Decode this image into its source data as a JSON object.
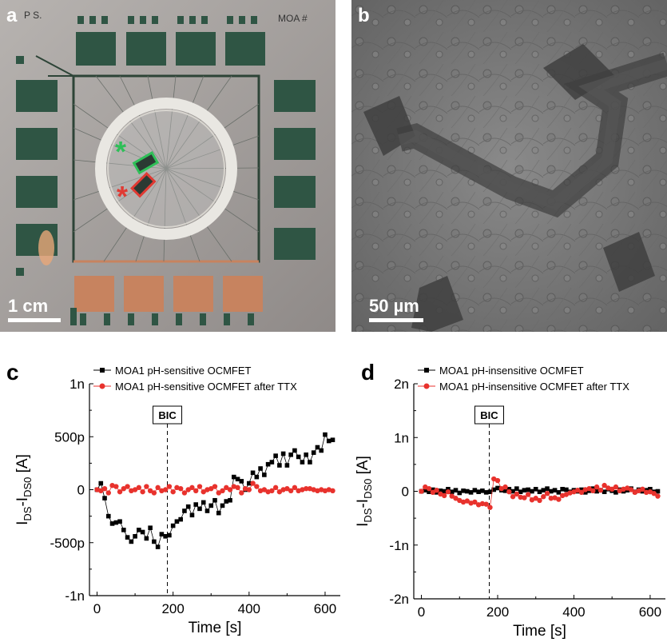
{
  "panel_a": {
    "letter": "a",
    "corner_text": "MOA #",
    "corner_text_left": "P S.",
    "scale_label": "1 cm",
    "marker_green": "*",
    "marker_red": "*"
  },
  "panel_b": {
    "letter": "b",
    "scale_label": "50 µm"
  },
  "chart_data": [
    {
      "panel": "c",
      "type": "line",
      "xlabel": "Time [s]",
      "ylabel": "I_DS-I_DS0 [A]",
      "xlim": [
        -20,
        640
      ],
      "ylim": [
        -1e-09,
        1e-09
      ],
      "xticks": [
        0,
        200,
        400,
        600
      ],
      "xtick_labels": [
        "0",
        "200",
        "400",
        "600"
      ],
      "yticks": [
        -1e-09,
        -5e-10,
        0,
        5e-10,
        1e-09
      ],
      "ytick_labels": [
        "-1n",
        "-500p",
        "0",
        "500p",
        "1n"
      ],
      "annotation": {
        "label": "BIC",
        "x": 185
      },
      "legend_position": "top",
      "series": [
        {
          "name": "MOA1 pH-sensitive OCMFET",
          "color": "#000000",
          "marker": "square",
          "x": [
            0,
            10,
            20,
            30,
            40,
            50,
            60,
            70,
            80,
            90,
            100,
            110,
            120,
            130,
            140,
            150,
            160,
            170,
            180,
            190,
            200,
            210,
            220,
            230,
            240,
            250,
            260,
            270,
            280,
            290,
            300,
            310,
            320,
            330,
            340,
            350,
            360,
            370,
            380,
            390,
            400,
            410,
            420,
            430,
            440,
            450,
            460,
            470,
            480,
            490,
            500,
            510,
            520,
            530,
            540,
            550,
            560,
            570,
            580,
            590,
            600,
            610,
            620
          ],
          "values": [
            0,
            6e-11,
            -8e-11,
            -2.5e-10,
            -3.2e-10,
            -3.1e-10,
            -3e-10,
            -3.8e-10,
            -4.5e-10,
            -4.9e-10,
            -4.4e-10,
            -3.8e-10,
            -4e-10,
            -4.6e-10,
            -3.6e-10,
            -4.9e-10,
            -5.4e-10,
            -4.2e-10,
            -4.4e-10,
            -4.3e-10,
            -3.4e-10,
            -3e-10,
            -2.8e-10,
            -2e-10,
            -1.6e-10,
            -2.4e-10,
            -1.4e-10,
            -1.8e-10,
            -1.2e-10,
            -2e-10,
            -1.5e-10,
            -1e-10,
            -2.2e-10,
            -1.5e-10,
            -1.1e-10,
            -1e-10,
            1.2e-10,
            1e-10,
            8e-11,
            0,
            6e-11,
            1.6e-10,
            1.2e-10,
            2e-10,
            1.4e-10,
            2.4e-10,
            2.6e-10,
            3.2e-10,
            2.3e-10,
            3.4e-10,
            2.3e-10,
            3.3e-10,
            3.7e-10,
            3.1e-10,
            2.6e-10,
            3.3e-10,
            2.6e-10,
            3.5e-10,
            4e-10,
            3.7e-10,
            5.2e-10,
            4.6e-10,
            4.7e-10
          ]
        },
        {
          "name": "MOA1 pH-sensitive OCMFET after TTX",
          "color": "#e8322d",
          "marker": "circle",
          "x": [
            0,
            10,
            20,
            30,
            40,
            50,
            60,
            70,
            80,
            90,
            100,
            110,
            120,
            130,
            140,
            150,
            160,
            170,
            180,
            190,
            200,
            210,
            220,
            230,
            240,
            250,
            260,
            270,
            280,
            290,
            300,
            310,
            320,
            330,
            340,
            350,
            360,
            370,
            380,
            390,
            400,
            410,
            420,
            430,
            440,
            450,
            460,
            470,
            480,
            490,
            500,
            510,
            520,
            530,
            540,
            550,
            560,
            570,
            580,
            590,
            600,
            610,
            620
          ],
          "values": [
            0,
            -1e-11,
            1e-11,
            -3e-11,
            4e-11,
            3e-11,
            -2e-11,
            1e-11,
            3e-11,
            -1e-11,
            0,
            2e-11,
            -2e-11,
            3e-11,
            -1e-11,
            -3e-11,
            2e-11,
            -1e-11,
            0,
            3e-11,
            -2e-11,
            2e-11,
            1e-11,
            -3e-11,
            0,
            2e-11,
            -1e-11,
            3e-11,
            -2e-11,
            0,
            1e-11,
            3e-11,
            -3e-11,
            -1e-11,
            2e-11,
            0,
            3e-11,
            2e-11,
            -3e-11,
            1e-11,
            0,
            6e-11,
            3e-11,
            -1e-11,
            0,
            -2e-11,
            -1e-11,
            2e-11,
            -2e-11,
            0,
            1e-11,
            -1e-11,
            2e-11,
            -1e-11,
            0,
            1e-11,
            1e-11,
            0,
            -1e-11,
            0,
            -1e-11,
            0,
            -1e-11
          ]
        }
      ]
    },
    {
      "panel": "d",
      "type": "line",
      "xlabel": "Time [s]",
      "ylabel": "I_DS-I_DS0 [A]",
      "xlim": [
        -20,
        640
      ],
      "ylim": [
        -2e-09,
        2e-09
      ],
      "xticks": [
        0,
        200,
        400,
        600
      ],
      "xtick_labels": [
        "0",
        "200",
        "400",
        "600"
      ],
      "yticks": [
        -2e-09,
        -1e-09,
        0,
        1e-09,
        2e-09
      ],
      "ytick_labels": [
        "-2n",
        "-1n",
        "0",
        "1n",
        "2n"
      ],
      "annotation": {
        "label": "BIC",
        "x": 178
      },
      "legend_position": "top",
      "series": [
        {
          "name": "MOA1 pH-insensitive OCMFET",
          "color": "#000000",
          "marker": "square",
          "x": [
            0,
            10,
            20,
            30,
            40,
            50,
            60,
            70,
            80,
            90,
            100,
            110,
            120,
            130,
            140,
            150,
            160,
            170,
            180,
            190,
            200,
            210,
            220,
            230,
            240,
            250,
            260,
            270,
            280,
            290,
            300,
            310,
            320,
            330,
            340,
            350,
            360,
            370,
            380,
            390,
            400,
            410,
            420,
            430,
            440,
            450,
            460,
            470,
            480,
            490,
            500,
            510,
            520,
            530,
            540,
            550,
            560,
            570,
            580,
            590,
            600,
            610,
            620
          ],
          "values": [
            0,
            2e-11,
            -1e-11,
            3e-11,
            -2e-11,
            1e-11,
            0,
            4e-11,
            -1e-11,
            2e-11,
            -3e-11,
            1e-11,
            0,
            -2e-11,
            2e-11,
            -1e-11,
            1e-11,
            -2e-11,
            -1e-11,
            3e-11,
            6e-11,
            2e-11,
            1e-11,
            4e-11,
            0,
            5e-11,
            -1e-11,
            2e-11,
            3e-11,
            0,
            4e-11,
            -1e-11,
            2e-11,
            5e-11,
            0,
            2e-11,
            -2e-11,
            4e-11,
            3e-11,
            -1e-11,
            2e-11,
            0,
            3e-11,
            -2e-11,
            1e-11,
            5e-11,
            0,
            2e-11,
            -1e-11,
            4e-11,
            1e-11,
            -2e-11,
            3e-11,
            0,
            2e-11,
            5e-11,
            -1e-11,
            3e-11,
            0,
            2e-11,
            4e-11,
            -1e-11,
            0
          ]
        },
        {
          "name": "MOA1 pH-insensitive OCMFET after TTX",
          "color": "#e8322d",
          "marker": "circle",
          "x": [
            0,
            10,
            20,
            30,
            40,
            50,
            60,
            70,
            80,
            90,
            100,
            110,
            120,
            130,
            140,
            150,
            160,
            170,
            180,
            190,
            200,
            210,
            220,
            230,
            240,
            250,
            260,
            270,
            280,
            290,
            300,
            310,
            320,
            330,
            340,
            350,
            360,
            370,
            380,
            390,
            400,
            410,
            420,
            430,
            440,
            450,
            460,
            470,
            480,
            490,
            500,
            510,
            520,
            530,
            540,
            550,
            560,
            570,
            580,
            590,
            600,
            610,
            620
          ],
          "values": [
            0,
            8e-11,
            5e-11,
            -2e-11,
            2e-11,
            -5e-11,
            -8e-11,
            -1e-11,
            -9e-11,
            -1.3e-10,
            -1.7e-10,
            -2e-10,
            -1.8e-10,
            -2.2e-10,
            -2e-10,
            -2.5e-10,
            -2.3e-10,
            -2.4e-10,
            -3e-10,
            2.3e-10,
            2e-10,
            5e-11,
            8e-11,
            -1e-11,
            -1e-10,
            -5e-11,
            -1.1e-10,
            -1.2e-10,
            -6e-11,
            -1.6e-10,
            -1.3e-10,
            -1.7e-10,
            -1e-10,
            -4e-11,
            -1.3e-10,
            -1.2e-10,
            -1.5e-10,
            -8e-11,
            -6e-11,
            -3e-11,
            -1e-11,
            2e-11,
            -2e-11,
            3e-11,
            5e-11,
            1e-11,
            8e-11,
            2e-11,
            1.1e-10,
            6e-11,
            4e-11,
            8e-11,
            1e-11,
            4e-11,
            6e-11,
            3e-11,
            -2e-11,
            1e-11,
            4e-11,
            -2e-11,
            -1e-11,
            -4e-11,
            -9e-11
          ]
        }
      ]
    }
  ]
}
